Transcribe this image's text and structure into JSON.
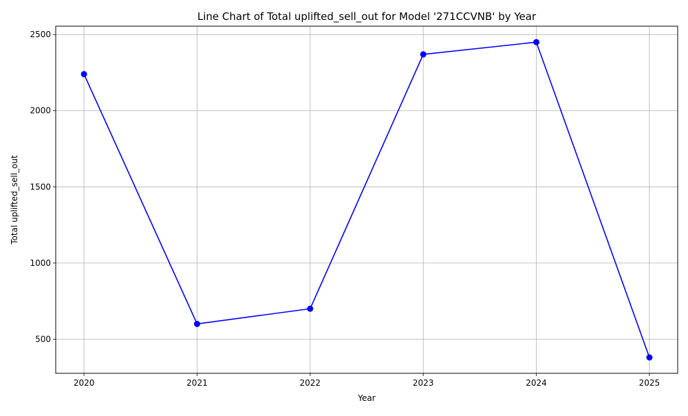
{
  "chart_data": {
    "type": "line",
    "title": "Line Chart of Total uplifted_sell_out for Model '271CCVNB' by Year",
    "xlabel": "Year",
    "ylabel": "Total uplifted_sell_out",
    "x": [
      2020,
      2021,
      2022,
      2023,
      2024,
      2025
    ],
    "series": [
      {
        "values": [
          2240,
          600,
          700,
          2370,
          2450,
          380
        ]
      }
    ],
    "xlim": [
      2019.75,
      2025.25
    ],
    "ylim": [
      276,
      2555
    ],
    "x_ticks": [
      2020,
      2021,
      2022,
      2023,
      2024,
      2025
    ],
    "y_ticks": [
      500,
      1000,
      1500,
      2000,
      2500
    ],
    "grid": true,
    "line_color": "#0000ff",
    "marker": "circle"
  }
}
